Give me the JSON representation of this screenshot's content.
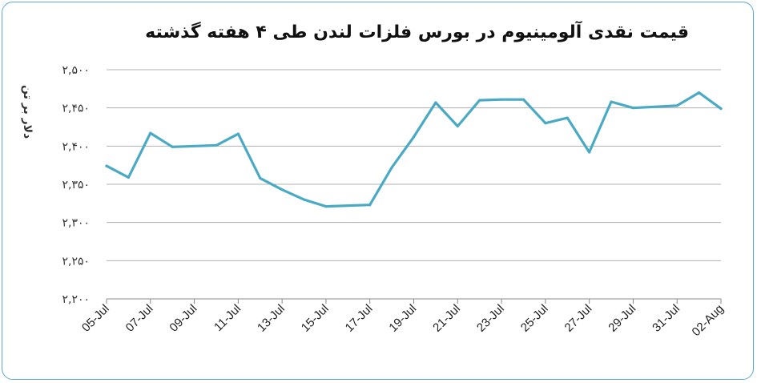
{
  "chart_data": {
    "type": "line",
    "title": "قیمت نقدی آلومینیوم در بورس فلزات لندن طی ۴ هفته گذشته",
    "ylabel": "دلار بر تن",
    "xlabel": "",
    "ylim": [
      2200,
      2500
    ],
    "yticks": [
      2200,
      2250,
      2300,
      2350,
      2400,
      2450,
      2500
    ],
    "ytick_labels": [
      "۲,۲۰۰",
      "۲,۲۵۰",
      "۲,۳۰۰",
      "۲,۳۵۰",
      "۲,۴۰۰",
      "۲,۴۵۰",
      "۲,۵۰۰"
    ],
    "x_tick_labels": [
      "05-Jul",
      "07-Jul",
      "09-Jul",
      "11-Jul",
      "13-Jul",
      "15-Jul",
      "17-Jul",
      "19-Jul",
      "21-Jul",
      "23-Jul",
      "25-Jul",
      "27-Jul",
      "29-Jul",
      "31-Jul",
      "02-Aug"
    ],
    "x_range_days": [
      0,
      28
    ],
    "grid": true,
    "series": [
      {
        "name": "",
        "color": "#4aaac4",
        "points": [
          {
            "x": "05-Jul",
            "y": 2374
          },
          {
            "x": "06-Jul",
            "y": 2359
          },
          {
            "x": "07-Jul",
            "y": 2417
          },
          {
            "x": "08-Jul",
            "y": 2399
          },
          {
            "x": "10-Jul",
            "y": 2401
          },
          {
            "x": "11-Jul",
            "y": 2416
          },
          {
            "x": "12-Jul",
            "y": 2358
          },
          {
            "x": "13-Jul",
            "y": 2343
          },
          {
            "x": "14-Jul",
            "y": 2330
          },
          {
            "x": "15-Jul",
            "y": 2321
          },
          {
            "x": "17-Jul",
            "y": 2323
          },
          {
            "x": "18-Jul",
            "y": 2372
          },
          {
            "x": "19-Jul",
            "y": 2412
          },
          {
            "x": "20-Jul",
            "y": 2457
          },
          {
            "x": "21-Jul",
            "y": 2426
          },
          {
            "x": "22-Jul",
            "y": 2460
          },
          {
            "x": "23-Jul",
            "y": 2461
          },
          {
            "x": "24-Jul",
            "y": 2461
          },
          {
            "x": "25-Jul",
            "y": 2430
          },
          {
            "x": "26-Jul",
            "y": 2437
          },
          {
            "x": "27-Jul",
            "y": 2392
          },
          {
            "x": "28-Jul",
            "y": 2458
          },
          {
            "x": "29-Jul",
            "y": 2450
          },
          {
            "x": "31-Jul",
            "y": 2453
          },
          {
            "x": "01-Aug",
            "y": 2470
          },
          {
            "x": "02-Aug",
            "y": 2449
          }
        ]
      }
    ]
  }
}
